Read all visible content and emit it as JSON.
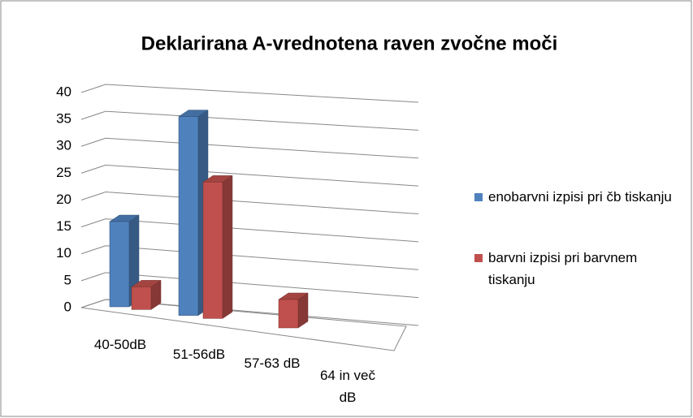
{
  "chart_data": {
    "type": "bar3d",
    "title": "Deklarirana  A-vrednotena raven zvočne moči",
    "categories": [
      "40-50dB",
      "51-56dB",
      "57-63 dB",
      "64 in več dB"
    ],
    "series": [
      {
        "name": "enobarvni izpisi pri čb tiskanju",
        "color": "#4f81bd",
        "values": [
          15,
          35,
          0,
          0
        ]
      },
      {
        "name": "barvni izpisi pri barvnem tiskanju",
        "color": "#c0504d",
        "values": [
          4,
          24,
          5,
          0
        ]
      }
    ],
    "ylim": [
      0,
      40
    ],
    "yticks": [
      0,
      5,
      10,
      15,
      20,
      25,
      30,
      35,
      40
    ],
    "grid": true,
    "legend": "right"
  }
}
